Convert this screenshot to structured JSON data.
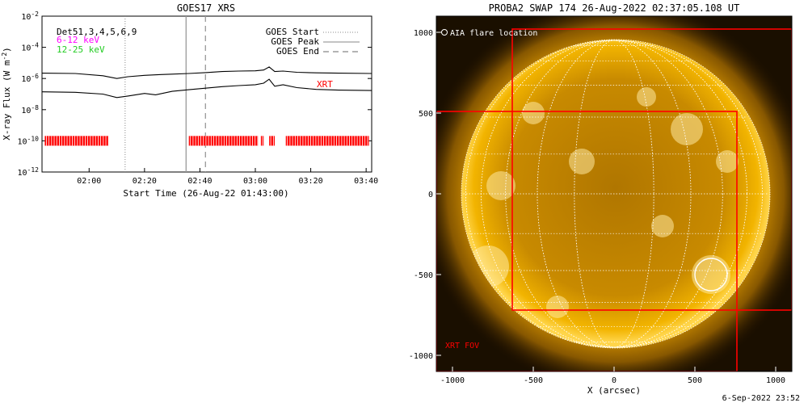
{
  "goes_panel": {
    "title": "GOES17 XRS",
    "ylabel_main": "X-ray Flux (W m",
    "ylabel_sup": "-2",
    "ylabel_close": ")",
    "xlabel": "Start Time (26-Aug-22 01:43:00)",
    "legend_channels": [
      "Det51,3,4,5,6,9",
      "6-12 keV",
      "12-25 keV"
    ],
    "legend_lines": [
      "GOES Start",
      "GOES Peak",
      "GOES End"
    ],
    "xrt_label": "XRT",
    "colors": {
      "ch_1_8": "#ff00ff",
      "ch_12_25": "#22cc22",
      "xrt": "#ff0000",
      "curve": "#000000"
    }
  },
  "swap_panel": {
    "title": "PROBA2 SWAP 174 26-Aug-2022 02:37:05.108 UT",
    "aia_label": "AIA flare location",
    "fov_label": "XRT FOV",
    "xlabel": "X (arcsec)",
    "colors": {
      "frame": "#ff0000",
      "disk": "#f0b000",
      "grid": "#ffffff"
    }
  },
  "footer": {
    "timestamp": "6-Sep-2022 23:52"
  },
  "chart_data": [
    {
      "type": "line",
      "title": "GOES17 XRS",
      "xlabel": "Start Time (26-Aug-22 01:43:00)",
      "ylabel": "X-ray Flux (W m-2)",
      "yscale": "log",
      "ylim": [
        1e-12,
        0.01
      ],
      "xlim": [
        "01:43",
        "03:42"
      ],
      "x_ticks": [
        "02:00",
        "02:20",
        "02:40",
        "03:00",
        "03:20",
        "03:40"
      ],
      "y_ticks": [
        "10^-2",
        "10^-4",
        "10^-6",
        "10^-8",
        "10^-10",
        "10^-12"
      ],
      "series": [
        {
          "x": [
            "01:43",
            "01:55",
            "02:05",
            "02:10",
            "02:14",
            "02:20",
            "02:26",
            "02:30",
            "02:36",
            "02:42",
            "02:48",
            "02:54",
            "03:00",
            "03:03",
            "03:05",
            "03:07",
            "03:10",
            "03:15",
            "03:22",
            "03:30",
            "03:42"
          ],
          "values": [
            2.2e-06,
            2.1e-06,
            1.5e-06,
            1e-06,
            1.3e-06,
            1.6e-06,
            1.8e-06,
            1.9e-06,
            2.1e-06,
            2.4e-06,
            2.8e-06,
            3e-06,
            3.1e-06,
            3.5e-06,
            5.5e-06,
            2.8e-06,
            3e-06,
            2.5e-06,
            2.3e-06,
            2.2e-06,
            2.1e-06
          ]
        },
        {
          "x": [
            "01:43",
            "01:55",
            "02:05",
            "02:10",
            "02:14",
            "02:20",
            "02:24",
            "02:30",
            "02:36",
            "02:42",
            "02:48",
            "02:54",
            "03:00",
            "03:03",
            "03:05",
            "03:07",
            "03:10",
            "03:15",
            "03:22",
            "03:30",
            "03:42"
          ],
          "values": [
            1.4e-07,
            1.3e-07,
            1e-07,
            6e-08,
            7.5e-08,
            1.1e-07,
            9e-08,
            1.5e-07,
            1.9e-07,
            2.4e-07,
            3e-07,
            3.5e-07,
            4e-07,
            5e-07,
            9e-07,
            3.2e-07,
            4e-07,
            2.6e-07,
            2e-07,
            1.8e-07,
            1.7e-07
          ]
        }
      ],
      "markers": {
        "GOES Start": "02:13",
        "GOES Peak": "02:35",
        "GOES End": "02:42"
      },
      "xrt_coverage": {
        "level": 1e-10,
        "intervals": [
          [
            "01:44",
            "02:07"
          ],
          [
            "02:36",
            "03:01"
          ],
          [
            "03:02",
            "03:03"
          ],
          [
            "03:05",
            "03:07"
          ],
          [
            "03:11",
            "03:41"
          ]
        ]
      }
    },
    {
      "type": "image",
      "title": "PROBA2 SWAP 174 26-Aug-2022 02:37:05.108 UT",
      "xlabel": "X (arcsec)",
      "xlim": [
        -1100,
        1100
      ],
      "ylim": [
        -1100,
        1100
      ],
      "x_ticks": [
        -1000,
        -500,
        0,
        500,
        1000
      ],
      "y_ticks": [
        1000,
        500,
        0,
        -500,
        -1000
      ],
      "solar_radius_arcsec": 950,
      "aia_flare_location": {
        "x": 600,
        "y": -500,
        "radius": 100
      },
      "xrt_fov": [
        {
          "x": [
            -1100,
            760
          ],
          "y": [
            -1100,
            510
          ]
        },
        {
          "x": [
            -630,
            1100
          ],
          "y": [
            -720,
            1020
          ]
        }
      ]
    }
  ]
}
